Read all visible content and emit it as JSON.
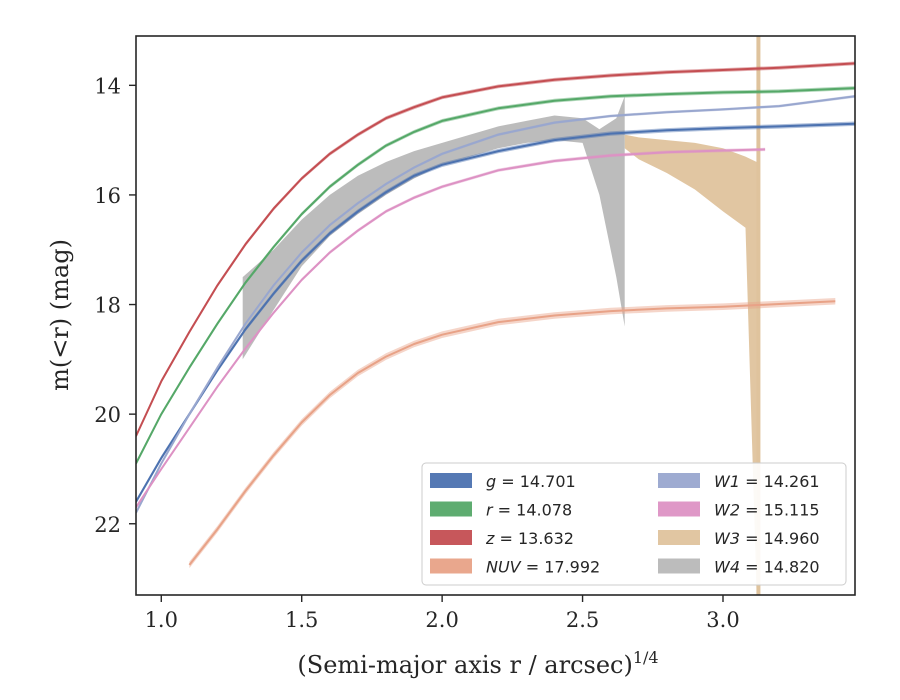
{
  "chart_data": {
    "type": "line",
    "xlabel": "(Semi-major axis r / arcsec)",
    "xlabel_exponent": "1/4",
    "ylabel": "m(<r) (mag)",
    "xlim": [
      0.91,
      3.47
    ],
    "ylim": [
      23.3,
      13.1
    ],
    "y_inverted": true,
    "grid": false,
    "legend_position": "lower-right",
    "x_ticks": [
      1.0,
      1.5,
      2.0,
      2.5,
      3.0
    ],
    "x_tick_labels": [
      "1.0",
      "1.5",
      "2.0",
      "2.5",
      "3.0"
    ],
    "y_ticks": [
      14,
      16,
      18,
      20,
      22
    ],
    "y_tick_labels": [
      "14",
      "16",
      "18",
      "20",
      "22"
    ],
    "series": [
      {
        "name": "g",
        "mag": "14.701",
        "legend_label": "g = 14.701",
        "color": "#4c72b0",
        "x": [
          0.91,
          1.0,
          1.1,
          1.2,
          1.3,
          1.4,
          1.5,
          1.6,
          1.7,
          1.8,
          1.9,
          2.0,
          2.2,
          2.4,
          2.6,
          2.8,
          3.0,
          3.2,
          3.47
        ],
        "y": [
          21.6,
          20.8,
          20.0,
          19.2,
          18.45,
          17.8,
          17.2,
          16.7,
          16.3,
          15.95,
          15.65,
          15.45,
          15.2,
          15.0,
          14.88,
          14.82,
          14.78,
          14.75,
          14.7
        ],
        "width": 0.08
      },
      {
        "name": "r",
        "mag": "14.078",
        "legend_label": "r = 14.078",
        "color": "#55a868",
        "x": [
          0.91,
          1.0,
          1.1,
          1.2,
          1.3,
          1.4,
          1.5,
          1.6,
          1.7,
          1.8,
          1.9,
          2.0,
          2.2,
          2.4,
          2.6,
          2.8,
          3.0,
          3.2,
          3.47
        ],
        "y": [
          20.9,
          20.0,
          19.15,
          18.35,
          17.6,
          16.95,
          16.35,
          15.85,
          15.45,
          15.1,
          14.85,
          14.65,
          14.42,
          14.28,
          14.2,
          14.16,
          14.13,
          14.11,
          14.05
        ],
        "width": 0.07
      },
      {
        "name": "z",
        "mag": "13.632",
        "legend_label": "z = 13.632",
        "color": "#c44e52",
        "x": [
          0.91,
          1.0,
          1.1,
          1.2,
          1.3,
          1.4,
          1.5,
          1.6,
          1.7,
          1.8,
          1.9,
          2.0,
          2.2,
          2.4,
          2.6,
          2.8,
          3.0,
          3.2,
          3.47
        ],
        "y": [
          20.4,
          19.4,
          18.5,
          17.65,
          16.9,
          16.25,
          15.7,
          15.25,
          14.9,
          14.6,
          14.4,
          14.22,
          14.02,
          13.9,
          13.82,
          13.76,
          13.72,
          13.68,
          13.6
        ],
        "width": 0.07
      },
      {
        "name": "NUV",
        "mag": "17.992",
        "legend_label": "NUV = 17.992",
        "color": "#e8a287",
        "x": [
          1.1,
          1.2,
          1.3,
          1.4,
          1.5,
          1.6,
          1.7,
          1.8,
          1.9,
          2.0,
          2.2,
          2.4,
          2.6,
          2.8,
          3.0,
          3.2,
          3.4
        ],
        "y": [
          22.75,
          22.1,
          21.4,
          20.75,
          20.15,
          19.65,
          19.25,
          18.95,
          18.72,
          18.55,
          18.32,
          18.2,
          18.12,
          18.07,
          18.04,
          17.99,
          17.94
        ],
        "width": 0.12
      },
      {
        "name": "W1",
        "mag": "14.261",
        "legend_label": "W1 = 14.261",
        "color": "#99a7cf",
        "x": [
          0.91,
          1.0,
          1.1,
          1.2,
          1.3,
          1.4,
          1.5,
          1.6,
          1.7,
          1.8,
          1.9,
          2.0,
          2.2,
          2.4,
          2.6,
          2.8,
          3.0,
          3.2,
          3.47
        ],
        "y": [
          21.8,
          20.9,
          20.0,
          19.15,
          18.35,
          17.65,
          17.05,
          16.55,
          16.15,
          15.8,
          15.5,
          15.25,
          14.9,
          14.68,
          14.56,
          14.49,
          14.44,
          14.38,
          14.2
        ],
        "width": 0.05
      },
      {
        "name": "W2",
        "mag": "15.115",
        "legend_label": "W2 = 15.115",
        "color": "#dd92c4",
        "x": [
          0.91,
          1.0,
          1.1,
          1.2,
          1.3,
          1.4,
          1.5,
          1.6,
          1.7,
          1.8,
          1.9,
          2.0,
          2.2,
          2.4,
          2.6,
          2.8,
          3.0,
          3.15
        ],
        "y": [
          21.7,
          21.0,
          20.25,
          19.5,
          18.8,
          18.15,
          17.55,
          17.05,
          16.65,
          16.3,
          16.05,
          15.85,
          15.55,
          15.38,
          15.28,
          15.22,
          15.19,
          15.17
        ],
        "width": 0.06
      },
      {
        "name": "W3",
        "mag": "14.960",
        "legend_label": "W3 = 14.960",
        "color": "#dfc39d",
        "x": [
          2.65,
          2.7,
          2.8,
          2.9,
          3.0,
          3.08,
          3.12
        ],
        "y_low": [
          14.9,
          14.95,
          15.0,
          15.05,
          15.15,
          15.3,
          15.4
        ],
        "y_high": [
          15.15,
          15.35,
          15.6,
          15.9,
          16.3,
          16.6,
          23.3
        ]
      },
      {
        "name": "W4",
        "mag": "14.820",
        "legend_label": "W4 = 14.820",
        "color": "#b8b8b8",
        "x": [
          1.29,
          1.4,
          1.5,
          1.6,
          1.7,
          1.8,
          1.9,
          2.0,
          2.1,
          2.2,
          2.3,
          2.4,
          2.5,
          2.56,
          2.62,
          2.65
        ],
        "y_low": [
          17.5,
          17.0,
          16.45,
          16.0,
          15.65,
          15.4,
          15.2,
          15.05,
          14.9,
          14.75,
          14.65,
          14.55,
          14.6,
          14.8,
          14.6,
          14.2
        ],
        "y_high": [
          19.0,
          18.1,
          17.3,
          16.75,
          16.35,
          16.0,
          15.7,
          15.45,
          15.3,
          15.15,
          15.05,
          15.0,
          15.05,
          16.0,
          17.5,
          18.4
        ]
      }
    ],
    "vertical_band": {
      "series": "W3",
      "x": 3.125,
      "width": 0.012,
      "color": "#dfc39d"
    }
  }
}
